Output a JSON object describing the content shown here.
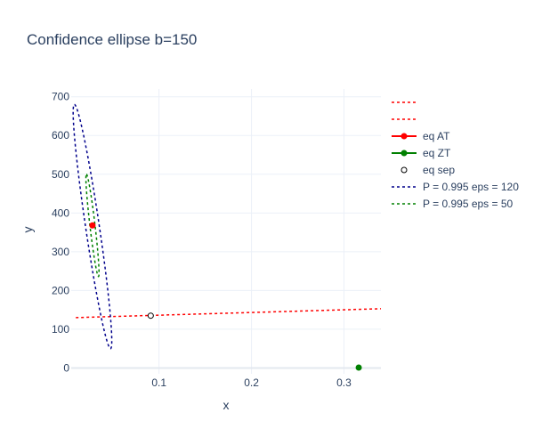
{
  "chart_data": {
    "type": "scatter",
    "title": "Confidence ellipse b=150",
    "xlabel": "x",
    "ylabel": "y",
    "xlim": [
      0.005,
      0.34
    ],
    "ylim": [
      -15,
      720
    ],
    "x_ticks": [
      0.1,
      0.2,
      0.3
    ],
    "y_ticks": [
      0,
      100,
      200,
      300,
      400,
      500,
      600,
      700
    ],
    "grid": true,
    "legend_position": "right",
    "series": [
      {
        "name": "",
        "kind": "line",
        "dash": "dot",
        "color": "#ff0000",
        "points": [
          [
            0.01,
            130
          ],
          [
            0.34,
            153
          ]
        ]
      },
      {
        "name": "",
        "kind": "line",
        "dash": "dot",
        "color": "#ff0000",
        "points": []
      },
      {
        "name": "eq AT",
        "kind": "marker",
        "color": "#ff0000",
        "points": [
          [
            0.028,
            368
          ]
        ]
      },
      {
        "name": "eq ZT",
        "kind": "marker",
        "color": "#008000",
        "points": [
          [
            0.316,
            1
          ]
        ]
      },
      {
        "name": "eq sep",
        "kind": "marker-open",
        "color": "#000000",
        "points": [
          [
            0.091,
            135
          ]
        ]
      },
      {
        "name": "P = 0.995 eps = 120",
        "kind": "ellipse",
        "dash": "dot",
        "color": "#00008b",
        "center": [
          0.028,
          365
        ],
        "half_width_x": 0.0195,
        "half_height_y": 315,
        "theta_deg": 87.0
      },
      {
        "name": "P = 0.995 eps = 50",
        "kind": "ellipse",
        "dash": "dot",
        "color": "#008000",
        "center": [
          0.028,
          368
        ],
        "half_width_x": 0.0065,
        "half_height_y": 132,
        "theta_deg": 87.0
      }
    ]
  }
}
